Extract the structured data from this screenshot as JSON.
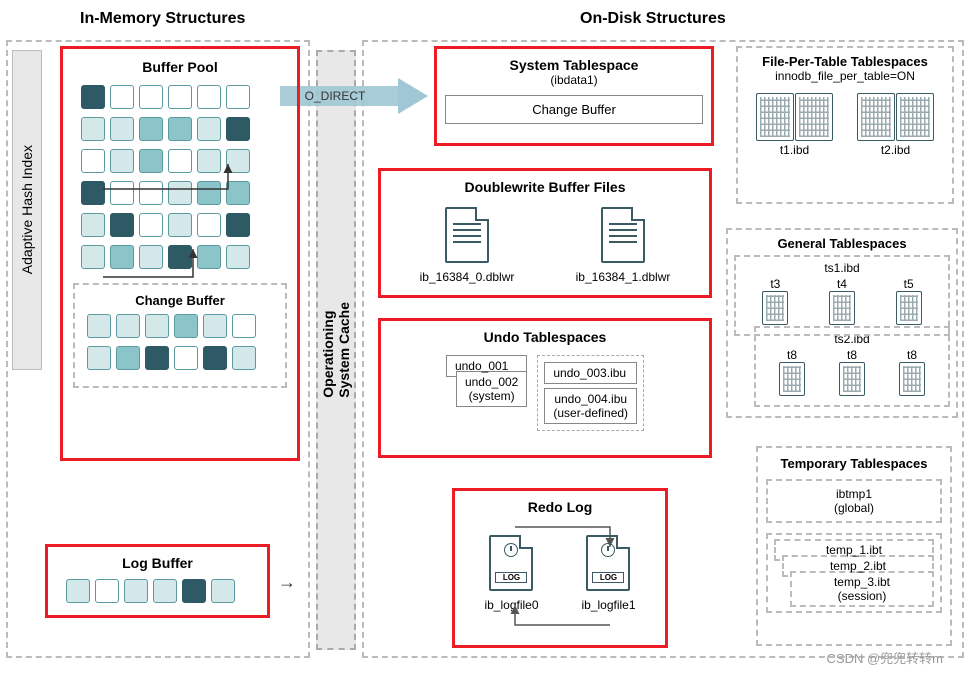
{
  "titles": {
    "in_memory": "In-Memory Structures",
    "on_disk": "On-Disk Structures"
  },
  "adaptive_hash": "Adaptive Hash Index",
  "os_cache": "Operationing\nSystem Cache",
  "o_direct": "O_DIRECT",
  "buffer_pool": {
    "title": "Buffer Pool",
    "change_buffer": "Change Buffer",
    "rows": [
      [
        "dark",
        "empty",
        "empty",
        "empty",
        "empty",
        "empty"
      ],
      [
        "light",
        "light",
        "filled",
        "filled",
        "light",
        "dark"
      ],
      [
        "empty",
        "light",
        "filled",
        "empty",
        "light",
        "light"
      ],
      [
        "dark",
        "empty",
        "empty",
        "light",
        "filled",
        "filled"
      ],
      [
        "light",
        "dark",
        "empty",
        "light",
        "empty",
        "dark"
      ],
      [
        "light",
        "filled",
        "light",
        "dark",
        "filled",
        "light"
      ]
    ],
    "cb_rows": [
      [
        "light",
        "light",
        "light",
        "filled",
        "light",
        "empty"
      ],
      [
        "light",
        "filled",
        "dark",
        "empty",
        "dark",
        "light"
      ]
    ]
  },
  "log_buffer": {
    "title": "Log Buffer",
    "cells": [
      "light",
      "empty",
      "light",
      "light",
      "dark",
      "light"
    ]
  },
  "system_ts": {
    "title": "System Tablespace",
    "sub": "(ibdata1)",
    "inner": "Change Buffer"
  },
  "doublewrite": {
    "title": "Doublewrite Buffer Files",
    "files": [
      "ib_16384_0.dblwr",
      "ib_16384_1.dblwr"
    ]
  },
  "undo": {
    "title": "Undo Tablespaces",
    "sys": [
      "undo_001",
      "undo_002\n(system)"
    ],
    "user": [
      "undo_003.ibu",
      "undo_004.ibu\n(user-defined)"
    ]
  },
  "redo": {
    "title": "Redo Log",
    "files": [
      "ib_logfile0",
      "ib_logfile1"
    ],
    "log": "LOG"
  },
  "file_per_table": {
    "title": "File-Per-Table Tablespaces",
    "sub": "innodb_file_per_table=ON",
    "files": [
      "t1.ibd",
      "t2.ibd"
    ]
  },
  "general_ts": {
    "title": "General Tablespaces",
    "ts1": {
      "name": "ts1.ibd",
      "tables": [
        "t3",
        "t4",
        "t5"
      ]
    },
    "ts2": {
      "name": "ts2.ibd",
      "tables": [
        "t8",
        "t8",
        "t8"
      ]
    }
  },
  "temp_ts": {
    "title": "Temporary Tablespaces",
    "global": "ibtmp1\n(global)",
    "session": [
      "temp_1.ibt",
      "temp_2.ibt",
      "temp_3.ibt\n(session)"
    ]
  },
  "colors": {
    "red": "#ed1c24",
    "dark_teal": "#2d5a64",
    "teal": "#8cc5c9",
    "light_teal": "#d4e8ea",
    "border": "#5a9aa0",
    "gray_bg": "#e8e8e8",
    "dash": "#bbbbbb"
  },
  "watermark": "CSDN @兜兜转转m"
}
